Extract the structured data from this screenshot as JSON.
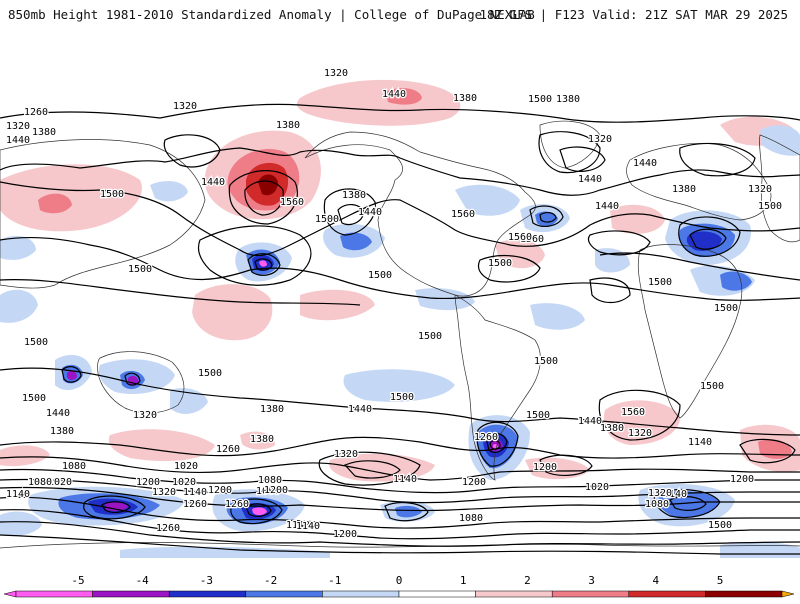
{
  "header": {
    "left": "850mb Height 1981-2010 Standardized Anomaly | College of DuPage NEXLAB",
    "right": "18Z GFS | F123 Valid: 21Z SAT MAR 29 2025"
  },
  "colors": {
    "neg5": "#ff5cf2",
    "neg4": "#9a14c4",
    "neg3": "#1f2fc8",
    "neg2": "#4b78e6",
    "neg1": "#c4d8f6",
    "pos1": "#f6c8cc",
    "pos2": "#ee7d88",
    "pos3": "#d02a2a",
    "pos4": "#8a0000",
    "pos5": "#f5a80a",
    "contour": "#000000",
    "coast": "#222222"
  },
  "contour_labels": [
    "1320",
    "1440",
    "1380",
    "1260",
    "1320",
    "1380",
    "1440",
    "1320",
    "1500",
    "1380",
    "1560",
    "1380",
    "1500",
    "1440",
    "1440",
    "1560",
    "1320",
    "1380",
    "1500",
    "1440",
    "1440",
    "1380",
    "1320",
    "1500",
    "1560",
    "1440",
    "1500",
    "1500",
    "1500",
    "1500",
    "1500",
    "1500",
    "1500",
    "1500",
    "1500",
    "1500",
    "1500",
    "1500",
    "1440",
    "1560",
    "1500",
    "1440",
    "1380",
    "1260",
    "1200",
    "1380",
    "1320",
    "1440",
    "1380",
    "1320",
    "1560",
    "1440",
    "1320",
    "1380",
    "1260",
    "1140",
    "1080",
    "1020",
    "1140",
    "1020",
    "1080",
    "1200",
    "1140",
    "1080",
    "1020",
    "1080",
    "1320",
    "1260",
    "1200",
    "1140",
    "1200",
    "1260",
    "1260",
    "1200",
    "1140",
    "1080",
    "1200",
    "1140",
    "1020",
    "1080",
    "1140",
    "1200",
    "1320",
    "1500"
  ],
  "colorbar": {
    "ticks": [
      "-5",
      "-4",
      "-3",
      "-2",
      "-1",
      "0",
      "1",
      "2",
      "3",
      "4",
      "5"
    ]
  }
}
